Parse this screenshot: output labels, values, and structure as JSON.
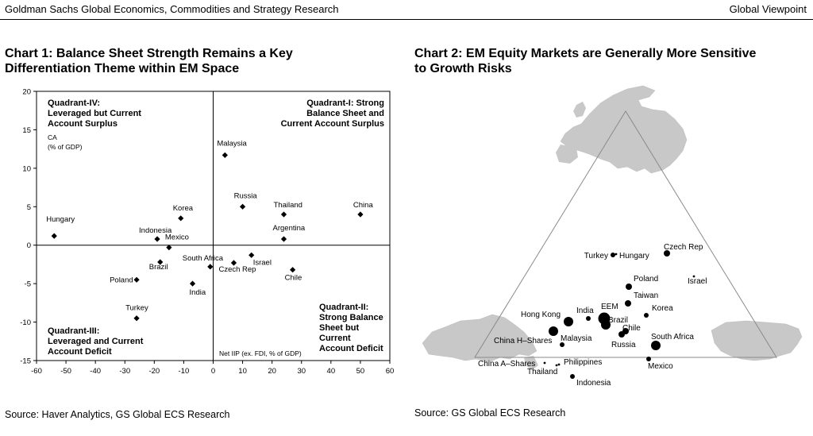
{
  "header": {
    "left": "Goldman Sachs Global Economics, Commodities and Strategy Research",
    "right": "Global Viewpoint"
  },
  "chart_data": [
    {
      "type": "scatter",
      "title_line1": "Chart 1: Balance Sheet Strength Remains a Key",
      "title_line2": "Differentiation Theme within EM Space",
      "xlabel": "Net IIP (ex. FDI, % of GDP)",
      "ylabel_line1": "CA",
      "ylabel_line2": "(% of GDP)",
      "xlim": [
        -60,
        60
      ],
      "ylim": [
        -15,
        20
      ],
      "xticks": [
        "-60",
        "-50",
        "-40",
        "-30",
        "-20",
        "-10",
        "0",
        "10",
        "20",
        "30",
        "40",
        "50",
        "60"
      ],
      "yticks": [
        "20",
        "15",
        "10",
        "5",
        "0",
        "-5",
        "-10",
        "-15"
      ],
      "quadrants": [
        {
          "id": "iv",
          "lines": [
            "Quadrant-IV:",
            "Leveraged but Current",
            "Account Surplus"
          ]
        },
        {
          "id": "i",
          "lines": [
            "Quadrant-I: Strong",
            "Balance Sheet and",
            "Current Account Surplus"
          ]
        },
        {
          "id": "iii",
          "lines": [
            "Quadrant-III:",
            "Leveraged and Current",
            "Account Deficit"
          ]
        },
        {
          "id": "ii",
          "lines": [
            "Quadrant-II:",
            "Strong Balance",
            "Sheet but",
            "Current",
            "Account Deficit"
          ]
        }
      ],
      "points": [
        {
          "label": "Hungary",
          "x": -54,
          "y": 1.2
        },
        {
          "label": "Korea",
          "x": -11,
          "y": 3.5
        },
        {
          "label": "Indonesia",
          "x": -19,
          "y": 0.8
        },
        {
          "label": "Mexico",
          "x": -15,
          "y": -0.3
        },
        {
          "label": "Brazil",
          "x": -18,
          "y": -2.2
        },
        {
          "label": "Poland",
          "x": -26,
          "y": -4.5
        },
        {
          "label": "India",
          "x": -7,
          "y": -5
        },
        {
          "label": "Turkey",
          "x": -26,
          "y": -9.5
        },
        {
          "label": "South Africa",
          "x": -1,
          "y": -2.8
        },
        {
          "label": "Czech Rep",
          "x": 7,
          "y": -2.3
        },
        {
          "label": "Israel",
          "x": 13,
          "y": -1.3
        },
        {
          "label": "Malaysia",
          "x": 4,
          "y": 11.7
        },
        {
          "label": "Russia",
          "x": 10,
          "y": 5
        },
        {
          "label": "Thailand",
          "x": 24,
          "y": 4
        },
        {
          "label": "China",
          "x": 50,
          "y": 4
        },
        {
          "label": "Argentina",
          "x": 24,
          "y": 0.8
        },
        {
          "label": "Chile",
          "x": 27,
          "y": -3.2
        }
      ]
    },
    {
      "type": "scatter",
      "title_line1": "Chart 2: EM Equity Markets are Generally More Sensitive",
      "title_line2": "to Growth Risks",
      "points": [
        {
          "label": "Czech Rep",
          "size": "medium"
        },
        {
          "label": "Turkey",
          "size": "small"
        },
        {
          "label": "Hungary",
          "size": "tiny"
        },
        {
          "label": "Israel",
          "size": "tiny"
        },
        {
          "label": "Poland",
          "size": "medium"
        },
        {
          "label": "Taiwan",
          "size": "medium"
        },
        {
          "label": "Korea",
          "size": "small"
        },
        {
          "label": "EEM",
          "size": "xlarge"
        },
        {
          "label": "Brazil",
          "size": "large"
        },
        {
          "label": "India",
          "size": "small"
        },
        {
          "label": "Hong Kong",
          "size": "large"
        },
        {
          "label": "Chile",
          "size": "medium"
        },
        {
          "label": "China H–Shares",
          "size": "large"
        },
        {
          "label": "Malaysia",
          "size": "small"
        },
        {
          "label": "Russia",
          "size": "medium"
        },
        {
          "label": "South Africa",
          "size": "large"
        },
        {
          "label": "Mexico",
          "size": "small"
        },
        {
          "label": "China A–Shares",
          "size": "tiny"
        },
        {
          "label": "Philippines",
          "size": "tiny"
        },
        {
          "label": "Thailand",
          "size": "tiny"
        },
        {
          "label": "Indonesia",
          "size": "small"
        }
      ]
    }
  ],
  "sources": {
    "chart1": "Source: Haver Analytics, GS Global ECS Research",
    "chart2": "Source: GS Global ECS Research"
  }
}
